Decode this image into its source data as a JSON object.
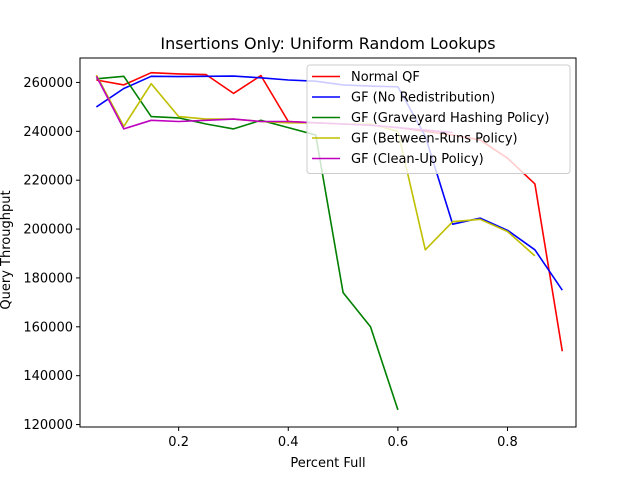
{
  "chart_data": {
    "type": "line",
    "title": "Insertions Only: Uniform Random Lookups",
    "xlabel": "Percent Full",
    "ylabel": "Query Throughput",
    "xlim": [
      0.02,
      0.925
    ],
    "ylim": [
      119000,
      270000
    ],
    "xticks": [
      0.2,
      0.4,
      0.6,
      0.8
    ],
    "xtick_labels": [
      "0.2",
      "0.4",
      "0.6",
      "0.8"
    ],
    "yticks": [
      120000,
      140000,
      160000,
      180000,
      200000,
      220000,
      240000,
      260000
    ],
    "ytick_labels": [
      "120000",
      "140000",
      "160000",
      "180000",
      "200000",
      "220000",
      "240000",
      "260000"
    ],
    "grid": false,
    "legend_position": "top-right",
    "series": [
      {
        "name": "Normal QF",
        "color": "#ff0000",
        "x": [
          0.05,
          0.1,
          0.15,
          0.2,
          0.25,
          0.3,
          0.35,
          0.4,
          0.45,
          0.5,
          0.55,
          0.6,
          0.65,
          0.7,
          0.75,
          0.8,
          0.85,
          0.9
        ],
        "y": [
          261000,
          259000,
          264000,
          263500,
          263200,
          255500,
          262800,
          244000,
          243500,
          243000,
          242500,
          241500,
          240000,
          238500,
          236500,
          229000,
          218500,
          150000
        ]
      },
      {
        "name": "GF (No Redistribution)",
        "color": "#0000ff",
        "x": [
          0.05,
          0.1,
          0.15,
          0.2,
          0.25,
          0.3,
          0.35,
          0.4,
          0.45,
          0.5,
          0.55,
          0.6,
          0.65,
          0.7,
          0.75,
          0.8,
          0.85,
          0.9
        ],
        "y": [
          250000,
          257500,
          262500,
          262400,
          262500,
          262600,
          261900,
          261000,
          260500,
          259000,
          258500,
          258200,
          238000,
          202000,
          204500,
          199500,
          191500,
          175000
        ]
      },
      {
        "name": "GF (Graveyard Hashing Policy)",
        "color": "#008000",
        "x": [
          0.05,
          0.1,
          0.15,
          0.2,
          0.25,
          0.3,
          0.35,
          0.4,
          0.45,
          0.5,
          0.55,
          0.6
        ],
        "y": [
          261500,
          262500,
          246000,
          245500,
          243000,
          241000,
          244500,
          241500,
          238500,
          174000,
          160000,
          126000
        ]
      },
      {
        "name": "GF (Between-Runs Policy)",
        "color": "#bfbf00",
        "x": [
          0.05,
          0.1,
          0.15,
          0.2,
          0.25,
          0.3,
          0.35,
          0.4,
          0.45,
          0.5,
          0.55,
          0.6,
          0.65,
          0.7,
          0.75,
          0.8,
          0.85
        ],
        "y": [
          263000,
          242000,
          259500,
          246000,
          245000,
          245000,
          244000,
          243500,
          243500,
          243000,
          243000,
          240000,
          191500,
          203000,
          204000,
          199000,
          189000
        ]
      },
      {
        "name": "GF (Clean-Up Policy)",
        "color": "#bf00bf",
        "x": [
          0.05,
          0.1,
          0.15,
          0.2,
          0.25,
          0.3,
          0.35,
          0.4,
          0.45,
          0.5,
          0.55,
          0.6,
          0.65,
          0.7
        ],
        "y": [
          262500,
          241000,
          244500,
          244000,
          244500,
          245000,
          244000,
          244000,
          243500,
          243000,
          242500,
          241500,
          240500,
          239500
        ]
      }
    ]
  }
}
